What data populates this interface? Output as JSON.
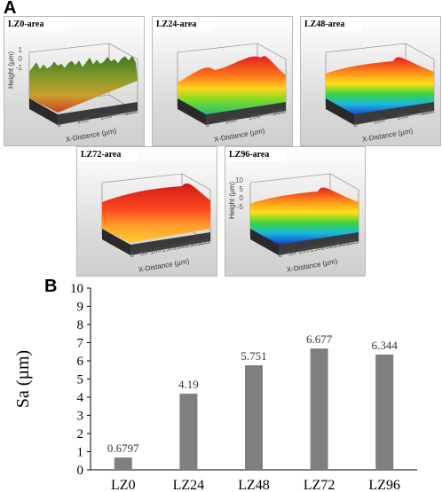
{
  "panel_a_label": "A",
  "panel_b_label": "B",
  "surfaces": [
    {
      "title": "LZ0-area",
      "ylabel": "Height (µm)",
      "xlabel": "X-Distance (µm)",
      "zticks": [
        "1",
        "0",
        "-1"
      ],
      "xticks": [
        "0",
        "100",
        "200",
        "300"
      ],
      "style": "rough"
    },
    {
      "title": "LZ24-area",
      "ylabel": "",
      "xlabel": "X-Distance (µm)",
      "zticks": [],
      "xticks": [
        "0",
        "100",
        "200",
        "300"
      ],
      "style": "red-top"
    },
    {
      "title": "LZ48-area",
      "ylabel": "",
      "xlabel": "X-Distance (µm)",
      "zticks": [],
      "xticks": [
        "0",
        "100",
        "200",
        "300"
      ],
      "style": "rainbow"
    },
    {
      "title": "LZ72-area",
      "ylabel": "",
      "xlabel": "X-Distance (µm)",
      "zticks": [],
      "xticks": [
        "0",
        "50",
        "100",
        "150",
        "200",
        "250",
        "300"
      ],
      "style": "red-wave"
    },
    {
      "title": "LZ96-area",
      "ylabel": "Height (µm)",
      "xlabel": "X-Distance (µm)",
      "zticks": [
        "10",
        "5",
        "0",
        "-5"
      ],
      "xticks": [
        "0",
        "50",
        "100",
        "150",
        "200",
        "250",
        "300"
      ],
      "style": "rainbow-deep"
    }
  ],
  "chart_data": {
    "type": "bar",
    "categories": [
      "LZ0",
      "LZ24",
      "LZ48",
      "LZ72",
      "LZ96"
    ],
    "values": [
      0.6797,
      4.19,
      5.751,
      6.677,
      6.344
    ],
    "value_labels": [
      "0.6797",
      "4.19",
      "5.751",
      "6.677",
      "6.344"
    ],
    "ylabel": "Sa (µm)",
    "xlabel": "",
    "ylim": [
      0,
      10
    ],
    "yticks": [
      0,
      1,
      2,
      3,
      4,
      5,
      6,
      7,
      8,
      9,
      10
    ],
    "grid": false,
    "bar_color": "#7f7f7f"
  }
}
